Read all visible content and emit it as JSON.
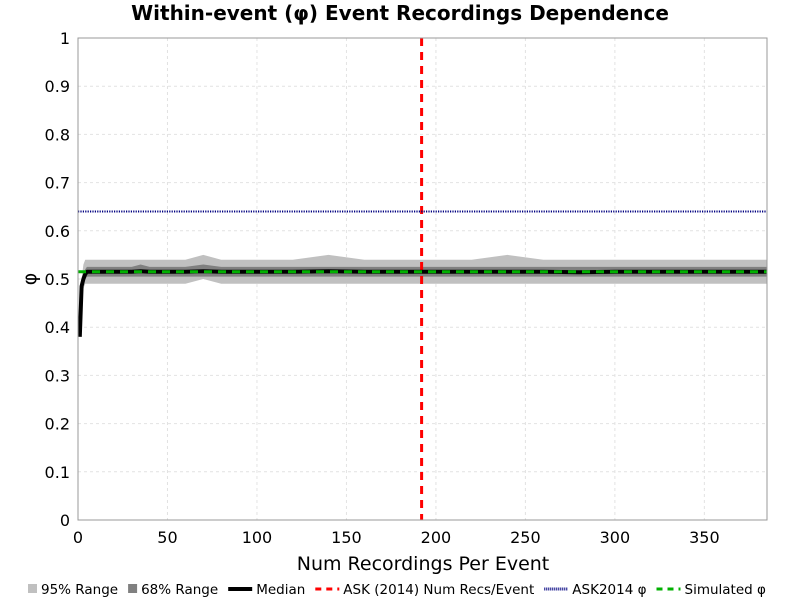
{
  "chart_data": {
    "type": "line",
    "title": "Within-event (φ) Event Recordings Dependence",
    "xlabel": "Num Recordings Per Event",
    "ylabel": "φ",
    "xlim": [
      0,
      385
    ],
    "ylim": [
      0,
      1
    ],
    "xticks": [
      0,
      50,
      100,
      150,
      200,
      250,
      300,
      350
    ],
    "yticks": [
      0,
      0.1,
      0.2,
      0.3,
      0.4,
      0.5,
      0.6,
      0.7,
      0.8,
      0.9,
      1
    ],
    "ytick_labels": [
      "0",
      "0.1",
      "0.2",
      "0.3",
      "0.4",
      "0.5",
      "0.6",
      "0.7",
      "0.8",
      "0.9",
      "1"
    ],
    "grid": true,
    "legend_position": "bottom",
    "x": [
      1,
      2,
      3,
      4,
      5,
      6,
      8,
      10,
      12,
      15,
      20,
      25,
      30,
      35,
      40,
      50,
      60,
      70,
      80,
      90,
      100,
      120,
      140,
      160,
      180,
      200,
      220,
      240,
      260,
      280,
      300,
      320,
      340,
      360,
      380,
      385
    ],
    "series": [
      {
        "name": "95% Range",
        "kind": "band",
        "color": "#c0c0c0",
        "lower": [
          0.39,
          0.45,
          0.48,
          0.49,
          0.49,
          0.49,
          0.49,
          0.49,
          0.49,
          0.49,
          0.49,
          0.49,
          0.49,
          0.49,
          0.49,
          0.49,
          0.49,
          0.5,
          0.49,
          0.49,
          0.49,
          0.49,
          0.49,
          0.49,
          0.49,
          0.49,
          0.49,
          0.49,
          0.49,
          0.49,
          0.49,
          0.49,
          0.49,
          0.49,
          0.49,
          0.49
        ],
        "upper": [
          0.4,
          0.5,
          0.53,
          0.54,
          0.54,
          0.54,
          0.54,
          0.54,
          0.54,
          0.54,
          0.54,
          0.54,
          0.54,
          0.54,
          0.54,
          0.54,
          0.54,
          0.55,
          0.54,
          0.54,
          0.54,
          0.54,
          0.55,
          0.54,
          0.54,
          0.54,
          0.54,
          0.55,
          0.54,
          0.54,
          0.54,
          0.54,
          0.54,
          0.54,
          0.54,
          0.54
        ]
      },
      {
        "name": "68% Range",
        "kind": "band",
        "color": "#808080",
        "lower": [
          0.385,
          0.47,
          0.49,
          0.5,
          0.505,
          0.505,
          0.505,
          0.505,
          0.505,
          0.505,
          0.505,
          0.505,
          0.505,
          0.505,
          0.505,
          0.505,
          0.505,
          0.505,
          0.505,
          0.505,
          0.505,
          0.505,
          0.505,
          0.505,
          0.505,
          0.505,
          0.505,
          0.505,
          0.505,
          0.505,
          0.505,
          0.505,
          0.505,
          0.505,
          0.505,
          0.505
        ],
        "upper": [
          0.39,
          0.49,
          0.51,
          0.52,
          0.525,
          0.525,
          0.525,
          0.525,
          0.525,
          0.525,
          0.525,
          0.525,
          0.525,
          0.53,
          0.525,
          0.525,
          0.525,
          0.53,
          0.525,
          0.525,
          0.525,
          0.525,
          0.525,
          0.525,
          0.525,
          0.525,
          0.525,
          0.525,
          0.525,
          0.525,
          0.525,
          0.525,
          0.525,
          0.525,
          0.525,
          0.525
        ]
      },
      {
        "name": "Median",
        "kind": "line",
        "color": "#000000",
        "values": [
          0.38,
          0.485,
          0.5,
          0.51,
          0.515,
          0.515,
          0.515,
          0.515,
          0.515,
          0.515,
          0.515,
          0.515,
          0.515,
          0.516,
          0.515,
          0.515,
          0.515,
          0.516,
          0.515,
          0.515,
          0.515,
          0.515,
          0.516,
          0.515,
          0.515,
          0.515,
          0.515,
          0.515,
          0.515,
          0.514,
          0.515,
          0.515,
          0.515,
          0.515,
          0.515,
          0.515
        ]
      }
    ],
    "reference_lines": [
      {
        "name": "ASK (2014) Num Recs/Event",
        "orientation": "vertical",
        "value": 192,
        "color": "#ff0000",
        "style": "dashed"
      },
      {
        "name": "ASK2014 φ",
        "orientation": "horizontal",
        "value": 0.64,
        "color": "#000080",
        "style": "dotted"
      },
      {
        "name": "Simulated φ",
        "orientation": "horizontal",
        "value": 0.515,
        "color": "#00b000",
        "style": "dashed"
      }
    ],
    "legend": [
      {
        "label": "95% Range",
        "symbol": "square",
        "color": "#c0c0c0"
      },
      {
        "label": "68% Range",
        "symbol": "square",
        "color": "#808080"
      },
      {
        "label": "Median",
        "symbol": "solid",
        "color": "#000000"
      },
      {
        "label": "ASK (2014) Num Recs/Event",
        "symbol": "dashed",
        "color": "#ff0000"
      },
      {
        "label": "ASK2014 φ",
        "symbol": "dotted",
        "color": "#000080"
      },
      {
        "label": "Simulated φ",
        "symbol": "dashed",
        "color": "#00b000"
      }
    ]
  }
}
